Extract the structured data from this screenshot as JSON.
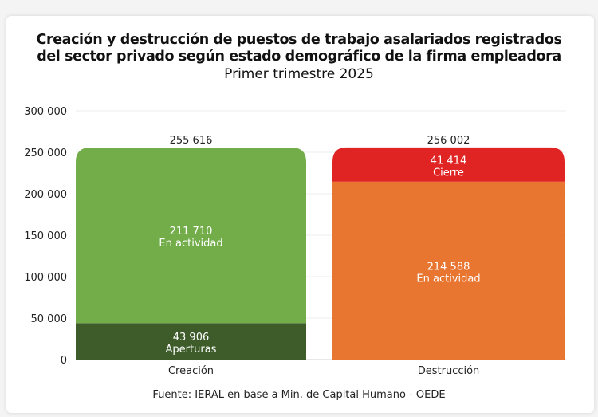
{
  "chart_data": {
    "type": "bar",
    "stacked": true,
    "title": "Creación y destrucción de puestos de trabajo asalariados registrados del sector privado según estado demográfico de la firma empleadora",
    "title_lines": [
      "Creación y destrucción de puestos de trabajo asalariados registrados",
      "del sector privado según estado demográfico de la firma empleadora"
    ],
    "subtitle": "Primer trimestre 2025",
    "source": "Fuente: IERAL en base a Min. de Capital Humano - OEDE",
    "categories": [
      "Creación",
      "Destrucción"
    ],
    "ylim": [
      0,
      300000
    ],
    "yticks": [
      0,
      50000,
      100000,
      150000,
      200000,
      250000,
      300000
    ],
    "ytick_labels": [
      "0",
      "50 000",
      "100 000",
      "150 000",
      "200 000",
      "250 000",
      "300 000"
    ],
    "grid": true,
    "legend": "none",
    "bars": [
      {
        "category": "Creación",
        "total": 255616,
        "total_label": "255 616",
        "segments": [
          {
            "name": "Aperturas",
            "value": 43906,
            "label": "43 906",
            "color": "#3d5c2a"
          },
          {
            "name": "En actividad",
            "value": 211710,
            "label": "211 710",
            "color": "#72ad4a"
          }
        ]
      },
      {
        "category": "Destrucción",
        "total": 256002,
        "total_label": "256 002",
        "segments": [
          {
            "name": "En actividad",
            "value": 214588,
            "label": "214 588",
            "color": "#e87530"
          },
          {
            "name": "Cierre",
            "value": 41414,
            "label": "41 414",
            "color": "#e02424"
          }
        ]
      }
    ]
  }
}
